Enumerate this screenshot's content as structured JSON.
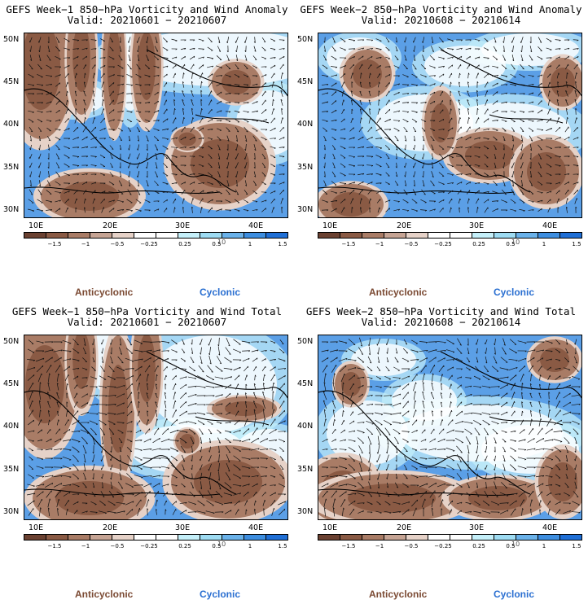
{
  "panels": [
    {
      "title": "GEFS Week−1 850−hPa Vorticity and Wind Anomaly",
      "valid": "Valid: 20210601 − 20210607",
      "variant": 1
    },
    {
      "title": "GEFS Week−2 850−hPa Vorticity and Wind Anomaly",
      "valid": "Valid: 20210608 − 20210614",
      "variant": 2
    },
    {
      "title": "GEFS Week−1 850−hPa Vorticity and Wind Total",
      "valid": "Valid: 20210601 − 20210607",
      "variant": 3
    },
    {
      "title": "GEFS Week−2 850−hPa Vorticity and Wind Total",
      "valid": "Valid: 20210608 − 20210614",
      "variant": 4
    }
  ],
  "lat_labels": [
    "50N",
    "45N",
    "40N",
    "35N",
    "30N"
  ],
  "lon_labels": [
    "10E",
    "20E",
    "30E",
    "40E"
  ],
  "colorbar": {
    "labels": [
      "−1.5",
      "−1",
      "−0.5",
      "−0.25",
      "0.25",
      "0.5",
      "1",
      "1.5"
    ],
    "scale_label": "10",
    "colors": [
      "#6b4131",
      "#8a5a44",
      "#a97c66",
      "#c6a494",
      "#e6d2c8",
      "#ffffff",
      "#ffffff",
      "#c5f0fa",
      "#9edcf3",
      "#6ab2ea",
      "#3d8ee0",
      "#1f6fd6"
    ]
  },
  "legend": {
    "anticyclonic": "Anticyclonic",
    "cyclonic": "Cyclonic",
    "anticyclonic_color": "#7b4a33",
    "cyclonic_color": "#2a6fd1"
  }
}
